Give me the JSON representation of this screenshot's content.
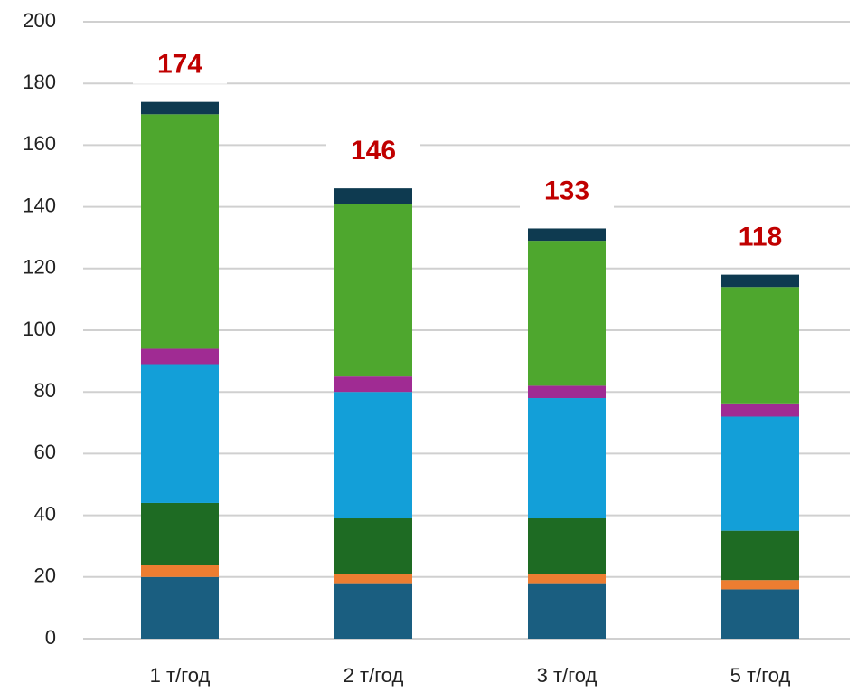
{
  "chart_data": {
    "type": "stacked_bar",
    "categories": [
      "1 т/год",
      "2 т/год",
      "3 т/год",
      "5 т/год"
    ],
    "series": [
      {
        "color": "#1a5e80",
        "values": [
          20,
          18,
          18,
          16
        ]
      },
      {
        "color": "#ed7d31",
        "values": [
          4,
          3,
          3,
          3
        ]
      },
      {
        "color": "#1e6b23",
        "values": [
          20,
          18,
          18,
          16
        ]
      },
      {
        "color": "#139fd8",
        "values": [
          45,
          41,
          39,
          37
        ]
      },
      {
        "color": "#a02b93",
        "values": [
          5,
          5,
          4,
          4
        ]
      },
      {
        "color": "#4ea72e",
        "values": [
          76,
          56,
          47,
          38
        ]
      },
      {
        "color": "#0e3a50",
        "values": [
          4,
          5,
          4,
          4
        ]
      }
    ],
    "totals": [
      174,
      146,
      133,
      118
    ],
    "total_color": "#c00000",
    "ylim": [
      0,
      200
    ],
    "yticks": [
      0,
      20,
      40,
      60,
      80,
      100,
      120,
      140,
      160,
      180,
      200
    ],
    "grid": true
  }
}
